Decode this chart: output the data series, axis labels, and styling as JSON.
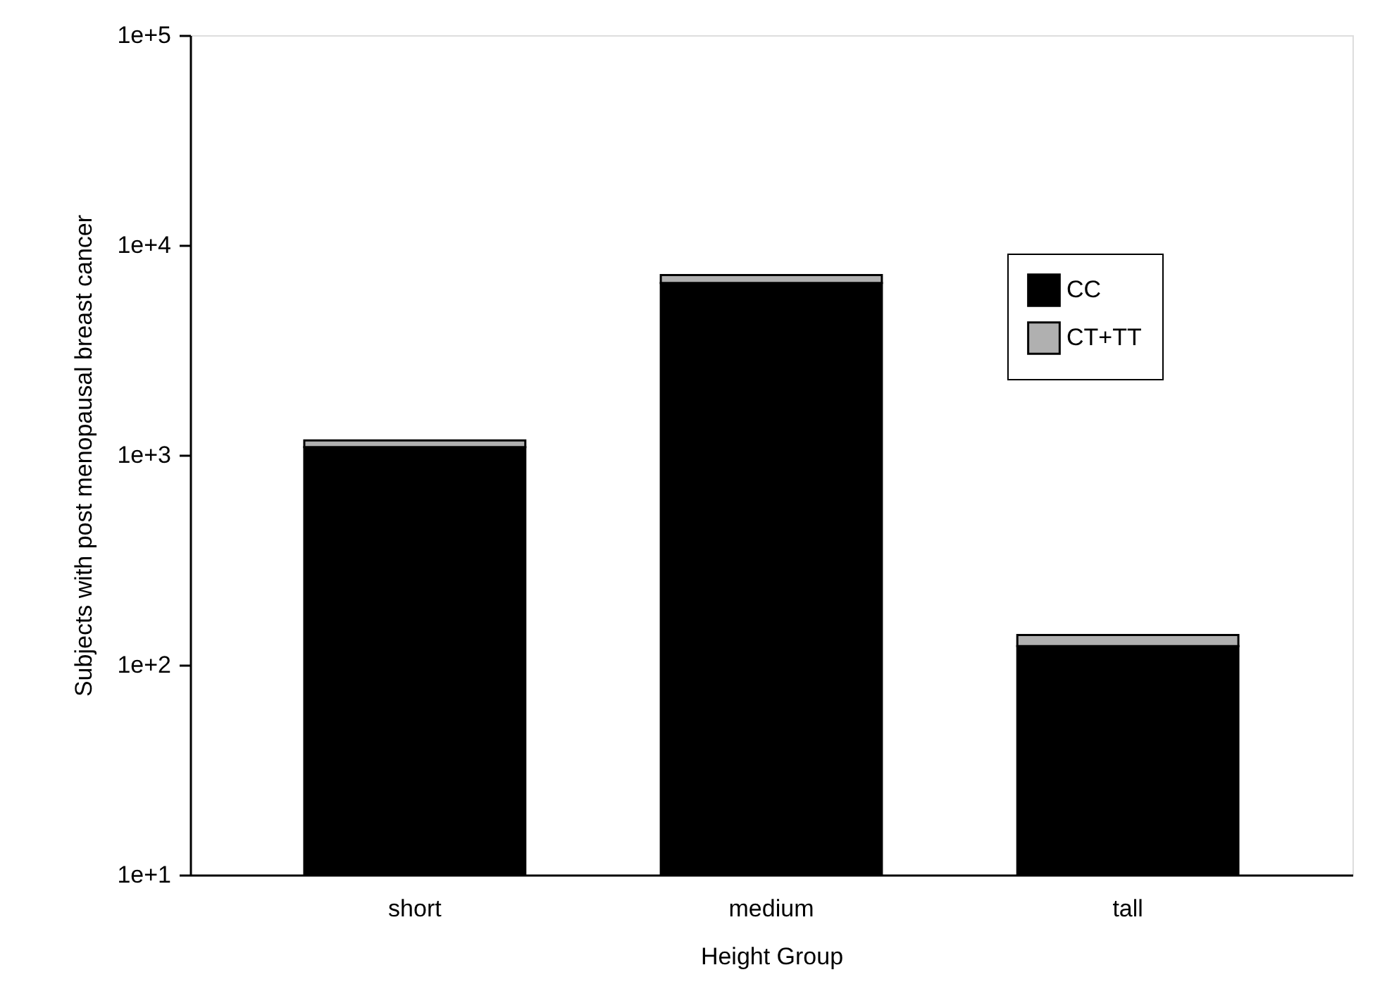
{
  "chart_data": {
    "type": "bar",
    "stacked": true,
    "log": true,
    "xlabel": "Height Group",
    "ylabel": "Subjects with post menopausal breast cancer",
    "categories": [
      "short",
      "medium",
      "tall"
    ],
    "series": [
      {
        "name": "CC",
        "color": "#000000",
        "values": [
          1090,
          6600,
          123
        ]
      },
      {
        "name": "CT+TT",
        "color": "#b0b0b0",
        "values": [
          85,
          600,
          16
        ]
      }
    ],
    "ylim": [
      10,
      100000
    ],
    "yticks": [
      {
        "value": 10,
        "label": "1e+1"
      },
      {
        "value": 100,
        "label": "1e+2"
      },
      {
        "value": 1000,
        "label": "1e+3"
      },
      {
        "value": 10000,
        "label": "1e+4"
      },
      {
        "value": 100000,
        "label": "1e+5"
      }
    ],
    "grid": false,
    "legend": "top right"
  }
}
